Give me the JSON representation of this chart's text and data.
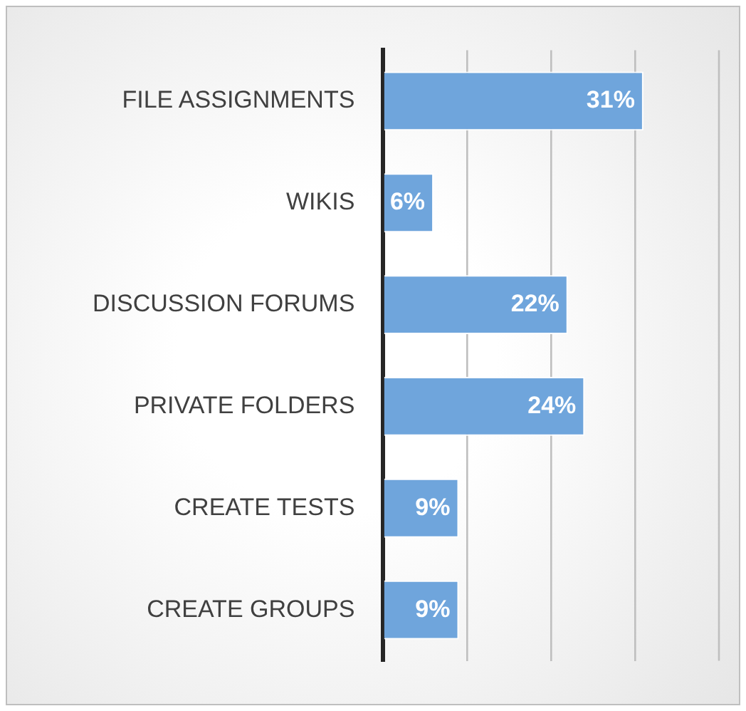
{
  "chart_data": {
    "type": "bar",
    "orientation": "horizontal",
    "categories": [
      "FILE ASSIGNMENTS",
      "WIKIS",
      "DISCUSSION FORUMS",
      "PRIVATE FOLDERS",
      "CREATE TESTS",
      "CREATE GROUPS"
    ],
    "values": [
      31,
      6,
      22,
      24,
      9,
      9
    ],
    "value_labels": [
      "31%",
      "6%",
      "22%",
      "24%",
      "9%",
      "9%"
    ],
    "color": "#6fa5dc",
    "xlim": [
      0,
      40
    ],
    "xticks": [
      {
        "value": 0,
        "label": null
      },
      {
        "value": 10,
        "label": null
      },
      {
        "value": 20,
        "label": null
      },
      {
        "value": 30,
        "label": null
      }
    ],
    "grid": "x",
    "tick_labels": "y",
    "legend": false
  }
}
